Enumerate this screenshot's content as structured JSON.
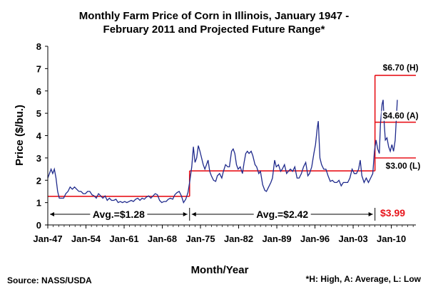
{
  "chart_data": {
    "type": "line",
    "title_line1": "Monthly Farm Price of Corn in Illinois, January 1947 -",
    "title_line2": "February 2011 and Projected Future Range*",
    "xlabel": "Month/Year",
    "ylabel": "Price ($/bu.)",
    "ylim": [
      0,
      8
    ],
    "yticks": [
      "0",
      "1",
      "2",
      "3",
      "4",
      "5",
      "6",
      "7",
      "8"
    ],
    "xlim": [
      1947.0,
      2014.5
    ],
    "xticks": [
      {
        "label": "Jan-47",
        "x": 1947.0
      },
      {
        "label": "Jan-54",
        "x": 1954.0
      },
      {
        "label": "Jan-61",
        "x": 1961.0
      },
      {
        "label": "Jan-68",
        "x": 1968.0
      },
      {
        "label": "Jan-75",
        "x": 1975.0
      },
      {
        "label": "Jan-82",
        "x": 1982.0
      },
      {
        "label": "Jan-89",
        "x": 1989.0
      },
      {
        "label": "Jan-96",
        "x": 1996.0
      },
      {
        "label": "Jan-03",
        "x": 2003.0
      },
      {
        "label": "Jan-10",
        "x": 2010.0
      }
    ],
    "grid": false,
    "series": [
      {
        "values": [
          [
            1947.0,
            2.1
          ],
          [
            1947.3,
            2.3
          ],
          [
            1947.6,
            2.5
          ],
          [
            1947.9,
            2.3
          ],
          [
            1948.2,
            2.5
          ],
          [
            1948.5,
            2.1
          ],
          [
            1948.8,
            1.5
          ],
          [
            1949.1,
            1.2
          ],
          [
            1949.5,
            1.2
          ],
          [
            1949.9,
            1.2
          ],
          [
            1950.3,
            1.4
          ],
          [
            1950.7,
            1.5
          ],
          [
            1951.1,
            1.7
          ],
          [
            1951.5,
            1.6
          ],
          [
            1951.9,
            1.7
          ],
          [
            1952.3,
            1.6
          ],
          [
            1952.7,
            1.5
          ],
          [
            1953.1,
            1.5
          ],
          [
            1953.5,
            1.4
          ],
          [
            1953.9,
            1.4
          ],
          [
            1954.3,
            1.5
          ],
          [
            1954.7,
            1.5
          ],
          [
            1955.1,
            1.35
          ],
          [
            1955.5,
            1.3
          ],
          [
            1955.9,
            1.2
          ],
          [
            1956.3,
            1.4
          ],
          [
            1956.7,
            1.3
          ],
          [
            1957.1,
            1.2
          ],
          [
            1957.5,
            1.3
          ],
          [
            1957.9,
            1.1
          ],
          [
            1958.3,
            1.2
          ],
          [
            1958.7,
            1.1
          ],
          [
            1959.1,
            1.1
          ],
          [
            1959.5,
            1.15
          ],
          [
            1959.9,
            1.0
          ],
          [
            1960.3,
            1.05
          ],
          [
            1960.7,
            1.0
          ],
          [
            1961.1,
            1.05
          ],
          [
            1961.5,
            1.0
          ],
          [
            1961.9,
            1.05
          ],
          [
            1962.3,
            1.1
          ],
          [
            1962.7,
            1.05
          ],
          [
            1963.1,
            1.15
          ],
          [
            1963.5,
            1.2
          ],
          [
            1963.9,
            1.1
          ],
          [
            1964.3,
            1.2
          ],
          [
            1964.7,
            1.15
          ],
          [
            1965.1,
            1.25
          ],
          [
            1965.5,
            1.3
          ],
          [
            1965.9,
            1.2
          ],
          [
            1966.3,
            1.3
          ],
          [
            1966.7,
            1.4
          ],
          [
            1967.1,
            1.35
          ],
          [
            1967.5,
            1.1
          ],
          [
            1967.9,
            1.0
          ],
          [
            1968.3,
            1.05
          ],
          [
            1968.7,
            1.05
          ],
          [
            1969.1,
            1.15
          ],
          [
            1969.5,
            1.2
          ],
          [
            1969.9,
            1.15
          ],
          [
            1970.3,
            1.35
          ],
          [
            1970.7,
            1.45
          ],
          [
            1971.1,
            1.5
          ],
          [
            1971.5,
            1.3
          ],
          [
            1971.9,
            1.0
          ],
          [
            1972.3,
            1.15
          ],
          [
            1972.7,
            1.45
          ],
          [
            1973.0,
            1.9
          ],
          [
            1973.4,
            2.6
          ],
          [
            1973.7,
            3.5
          ],
          [
            1974.0,
            2.8
          ],
          [
            1974.3,
            3.0
          ],
          [
            1974.6,
            3.55
          ],
          [
            1974.9,
            3.3
          ],
          [
            1975.2,
            3.0
          ],
          [
            1975.5,
            2.7
          ],
          [
            1975.8,
            2.5
          ],
          [
            1976.1,
            2.7
          ],
          [
            1976.4,
            2.9
          ],
          [
            1976.7,
            2.4
          ],
          [
            1977.0,
            2.2
          ],
          [
            1977.4,
            2.0
          ],
          [
            1977.8,
            1.95
          ],
          [
            1978.1,
            2.2
          ],
          [
            1978.5,
            2.3
          ],
          [
            1978.9,
            2.1
          ],
          [
            1979.2,
            2.4
          ],
          [
            1979.6,
            2.7
          ],
          [
            1980.0,
            2.6
          ],
          [
            1980.3,
            2.6
          ],
          [
            1980.7,
            3.3
          ],
          [
            1981.0,
            3.4
          ],
          [
            1981.3,
            3.2
          ],
          [
            1981.6,
            2.7
          ],
          [
            1981.9,
            2.5
          ],
          [
            1982.3,
            2.6
          ],
          [
            1982.7,
            2.3
          ],
          [
            1983.0,
            2.8
          ],
          [
            1983.3,
            3.2
          ],
          [
            1983.6,
            3.3
          ],
          [
            1983.9,
            3.2
          ],
          [
            1984.3,
            3.3
          ],
          [
            1984.6,
            3.1
          ],
          [
            1985.0,
            2.7
          ],
          [
            1985.3,
            2.6
          ],
          [
            1985.7,
            2.3
          ],
          [
            1986.0,
            2.4
          ],
          [
            1986.4,
            1.8
          ],
          [
            1986.8,
            1.55
          ],
          [
            1987.1,
            1.5
          ],
          [
            1987.5,
            1.7
          ],
          [
            1987.9,
            1.9
          ],
          [
            1988.2,
            2.1
          ],
          [
            1988.6,
            2.9
          ],
          [
            1988.9,
            2.6
          ],
          [
            1989.3,
            2.7
          ],
          [
            1989.7,
            2.4
          ],
          [
            1990.0,
            2.5
          ],
          [
            1990.4,
            2.7
          ],
          [
            1990.8,
            2.3
          ],
          [
            1991.1,
            2.4
          ],
          [
            1991.5,
            2.5
          ],
          [
            1991.9,
            2.4
          ],
          [
            1992.3,
            2.6
          ],
          [
            1992.7,
            2.1
          ],
          [
            1993.1,
            2.1
          ],
          [
            1993.5,
            2.3
          ],
          [
            1993.9,
            2.6
          ],
          [
            1994.3,
            2.8
          ],
          [
            1994.7,
            2.2
          ],
          [
            1995.0,
            2.3
          ],
          [
            1995.4,
            2.6
          ],
          [
            1995.8,
            3.2
          ],
          [
            1996.1,
            3.6
          ],
          [
            1996.4,
            4.3
          ],
          [
            1996.6,
            4.65
          ],
          [
            1996.9,
            3.0
          ],
          [
            1997.2,
            2.7
          ],
          [
            1997.6,
            2.5
          ],
          [
            1998.0,
            2.5
          ],
          [
            1998.4,
            2.2
          ],
          [
            1998.8,
            1.95
          ],
          [
            1999.2,
            2.0
          ],
          [
            1999.6,
            1.9
          ],
          [
            2000.0,
            1.9
          ],
          [
            2000.4,
            2.0
          ],
          [
            2000.8,
            1.75
          ],
          [
            2001.2,
            1.9
          ],
          [
            2001.6,
            1.9
          ],
          [
            2002.0,
            1.9
          ],
          [
            2002.4,
            2.1
          ],
          [
            2002.8,
            2.5
          ],
          [
            2003.2,
            2.3
          ],
          [
            2003.6,
            2.3
          ],
          [
            2004.0,
            2.5
          ],
          [
            2004.3,
            2.9
          ],
          [
            2004.6,
            2.2
          ],
          [
            2005.0,
            1.9
          ],
          [
            2005.4,
            2.1
          ],
          [
            2005.8,
            1.9
          ],
          [
            2006.2,
            2.1
          ],
          [
            2006.6,
            2.3
          ],
          [
            2006.9,
            3.3
          ],
          [
            2007.2,
            3.8
          ],
          [
            2007.5,
            3.4
          ],
          [
            2007.8,
            3.2
          ],
          [
            2008.0,
            4.5
          ],
          [
            2008.3,
            5.4
          ],
          [
            2008.5,
            5.6
          ],
          [
            2008.7,
            4.5
          ],
          [
            2008.9,
            3.8
          ],
          [
            2009.2,
            3.9
          ],
          [
            2009.5,
            3.5
          ],
          [
            2009.8,
            3.3
          ],
          [
            2010.1,
            3.6
          ],
          [
            2010.4,
            3.3
          ],
          [
            2010.7,
            3.8
          ],
          [
            2010.9,
            4.7
          ],
          [
            2011.1,
            5.6
          ]
        ]
      }
    ],
    "averages": [
      {
        "label": "Avg.=$1.28",
        "value": 1.28,
        "x_start": 1947.0,
        "x_end": 1973.0
      },
      {
        "label": "Avg.=$2.42",
        "value": 2.42,
        "x_start": 1973.0,
        "x_end": 2007.0
      }
    ],
    "projection": {
      "x_start": 2007.0,
      "x_end": 2014.5,
      "lines": [
        {
          "label": "$6.70 (H)",
          "value": 6.7
        },
        {
          "label": "$4.60 (A)",
          "value": 4.6
        },
        {
          "label": "$3.00 (L)",
          "value": 3.0
        }
      ],
      "current_label": "$3.99"
    }
  },
  "footer": {
    "source": "Source: NASS/USDA",
    "note": "*H: High, A: Average, L: Low"
  },
  "colors": {
    "series": "#1f2a8c",
    "average": "#e8141b",
    "axis": "#000000"
  }
}
